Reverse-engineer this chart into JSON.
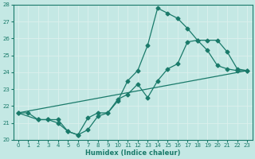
{
  "xlabel": "Humidex (Indice chaleur)",
  "xlim": [
    -0.5,
    23.5
  ],
  "ylim": [
    20,
    28
  ],
  "yticks": [
    20,
    21,
    22,
    23,
    24,
    25,
    26,
    27,
    28
  ],
  "xticks": [
    0,
    1,
    2,
    3,
    4,
    5,
    6,
    7,
    8,
    9,
    10,
    11,
    12,
    13,
    14,
    15,
    16,
    17,
    18,
    19,
    20,
    21,
    22,
    23
  ],
  "bg_color": "#c4e8e4",
  "grid_color": "#ddf0ed",
  "line_color": "#1a7a6a",
  "line1_x": [
    0,
    1,
    2,
    3,
    4,
    5,
    6,
    7,
    8,
    9,
    10,
    11,
    12,
    13,
    14,
    15,
    16,
    17,
    18,
    19,
    20,
    21,
    22,
    23
  ],
  "line1_y": [
    21.6,
    21.6,
    21.2,
    21.2,
    21.2,
    20.5,
    20.3,
    21.3,
    21.6,
    21.6,
    22.3,
    23.5,
    24.1,
    25.6,
    27.8,
    27.5,
    27.2,
    26.6,
    25.9,
    25.3,
    24.4,
    24.2,
    24.1,
    24.1
  ],
  "line2_x": [
    0,
    2,
    3,
    4,
    5,
    6,
    7,
    8,
    9,
    10,
    11,
    12,
    13,
    14,
    15,
    16,
    17,
    18,
    19,
    20,
    21,
    22,
    23
  ],
  "line2_y": [
    21.6,
    21.2,
    21.2,
    21.0,
    20.5,
    20.3,
    20.6,
    21.4,
    21.6,
    22.4,
    22.7,
    23.3,
    22.5,
    23.5,
    24.2,
    24.5,
    25.8,
    25.9,
    25.9,
    25.9,
    25.2,
    24.2,
    24.1
  ],
  "line3_x": [
    0,
    23
  ],
  "line3_y": [
    21.6,
    24.1
  ]
}
